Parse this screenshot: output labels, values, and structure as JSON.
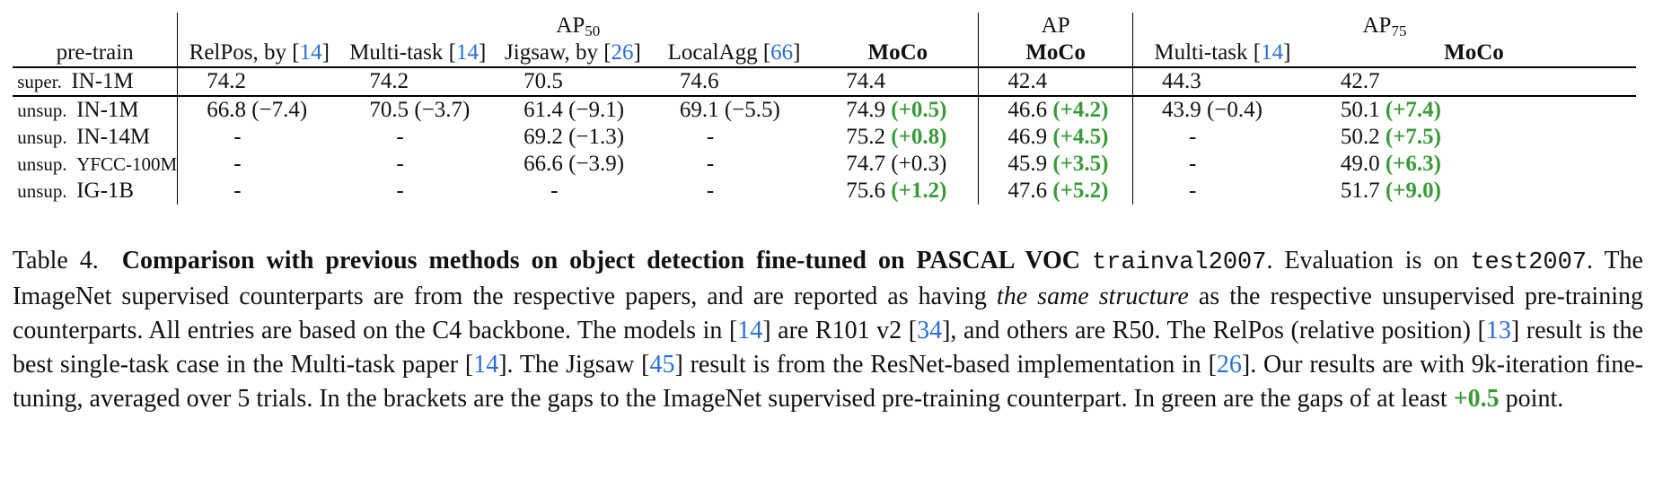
{
  "headers": {
    "pretrain": "pre-train",
    "ap50_group": "AP",
    "ap50_sub": "50",
    "ap_group": "AP",
    "ap75_group": "AP",
    "ap75_sub": "75",
    "cols": [
      {
        "text": "RelPos, by [",
        "cite": "14",
        "close": "]"
      },
      {
        "text": "Multi-task [",
        "cite": "14",
        "close": "]"
      },
      {
        "text": "Jigsaw, by [",
        "cite": "26",
        "close": "]"
      },
      {
        "text": "LocalAgg [",
        "cite": "66",
        "close": "]"
      },
      {
        "text": "MoCo"
      },
      {
        "text": "MoCo"
      },
      {
        "text": "Multi-task [",
        "cite": "14",
        "close": "]"
      },
      {
        "text": "MoCo"
      }
    ]
  },
  "rows": [
    {
      "kind": "super.",
      "data": "IN-1M",
      "cells": [
        [
          "74.2",
          ""
        ],
        [
          "74.2",
          ""
        ],
        [
          "70.5",
          ""
        ],
        [
          "74.6",
          ""
        ],
        [
          "74.4",
          ""
        ],
        [
          "42.4",
          ""
        ],
        [
          "44.3",
          ""
        ],
        [
          "42.7",
          ""
        ]
      ],
      "green": [
        false,
        false,
        false,
        false,
        false,
        false,
        false,
        false
      ]
    },
    {
      "kind": "unsup.",
      "data": "IN-1M",
      "cells": [
        [
          "66.8",
          "(−7.4)"
        ],
        [
          "70.5",
          "(−3.7)"
        ],
        [
          "61.4",
          "(−9.1)"
        ],
        [
          "69.1",
          "(−5.5)"
        ],
        [
          "74.9",
          "(+0.5)"
        ],
        [
          "46.6",
          "(+4.2)"
        ],
        [
          "43.9",
          "(−0.4)"
        ],
        [
          "50.1",
          "(+7.4)"
        ]
      ],
      "green": [
        false,
        false,
        false,
        false,
        true,
        true,
        false,
        true
      ]
    },
    {
      "kind": "unsup.",
      "data": "IN-14M",
      "cells": [
        [
          "-",
          ""
        ],
        [
          "-",
          ""
        ],
        [
          "69.2",
          "(−1.3)"
        ],
        [
          "-",
          ""
        ],
        [
          "75.2",
          "(+0.8)"
        ],
        [
          "46.9",
          "(+4.5)"
        ],
        [
          "-",
          ""
        ],
        [
          "50.2",
          "(+7.5)"
        ]
      ],
      "green": [
        false,
        false,
        false,
        false,
        true,
        true,
        false,
        true
      ]
    },
    {
      "kind": "unsup.",
      "data": "YFCC-100M",
      "cells": [
        [
          "-",
          ""
        ],
        [
          "-",
          ""
        ],
        [
          "66.6",
          "(−3.9)"
        ],
        [
          "-",
          ""
        ],
        [
          "74.7",
          "(+0.3)"
        ],
        [
          "45.9",
          "(+3.5)"
        ],
        [
          "-",
          ""
        ],
        [
          "49.0",
          "(+6.3)"
        ]
      ],
      "green": [
        false,
        false,
        false,
        false,
        false,
        true,
        false,
        true
      ]
    },
    {
      "kind": "unsup.",
      "data": "IG-1B",
      "cells": [
        [
          "-",
          ""
        ],
        [
          "-",
          ""
        ],
        [
          "-",
          ""
        ],
        [
          "-",
          ""
        ],
        [
          "75.6",
          "(+1.2)"
        ],
        [
          "47.6",
          "(+5.2)"
        ],
        [
          "-",
          ""
        ],
        [
          "51.7",
          "(+9.0)"
        ]
      ],
      "green": [
        false,
        false,
        false,
        false,
        true,
        true,
        false,
        true
      ]
    }
  ],
  "caption": {
    "label": "Table 4.",
    "title": "Comparison with previous methods on object detection fine-tuned on PASCAL VOC",
    "mono1": "trainval2007",
    "t1": ". Evaluation is on",
    "mono2": "test2007",
    "t2": ". The ImageNet supervised counterparts are from the respective papers, and are reported as having",
    "ital": "the same structure",
    "t3": "as the respective unsupervised pre-training counterparts.  All entries are based on the C4 backbone.  The models in [",
    "c14a": "14",
    "t4": "] are R101 v2 [",
    "c34": "34",
    "t5": "], and others are R50. The RelPos (relative position) [",
    "c13": "13",
    "t6": "] result is the best single-task case in the Multi-task paper [",
    "c14b": "14",
    "t7": "]. The Jigsaw [",
    "c45": "45",
    "t8": "] result is from the ResNet-based implementation in [",
    "c26": "26",
    "t9": "]. Our results are with 9k-iteration fine-tuning, averaged over 5 trials. In the brackets are the gaps to the ImageNet supervised pre-training counterpart. In green are the gaps of at least",
    "green_val": "+0.5",
    "t10": "point."
  }
}
